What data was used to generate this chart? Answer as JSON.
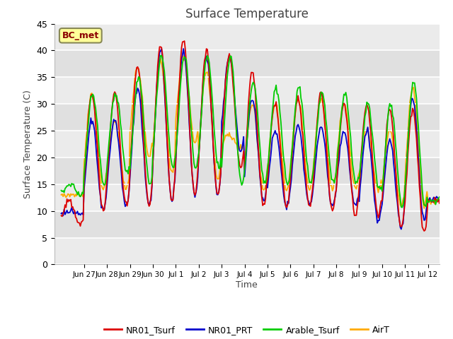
{
  "title": "Surface Temperature",
  "ylabel": "Surface Temperature (C)",
  "xlabel": "Time",
  "ylim": [
    0,
    45
  ],
  "annotation": "BC_met",
  "bg_color": "#e8e8e8",
  "fig_bg": "#ffffff",
  "series_colors": {
    "NR01_Tsurf": "#dd0000",
    "NR01_PRT": "#0000cc",
    "Arable_Tsurf": "#00cc00",
    "AirT": "#ffaa00"
  },
  "tick_labels": [
    "Jun 27",
    "Jun 28",
    "Jun 29",
    "Jun 30",
    "Jul 1",
    "Jul 2",
    "Jul 3",
    "Jul 4",
    "Jul 5",
    "Jul 6",
    "Jul 7",
    "Jul 8",
    "Jul 9",
    "Jul 10",
    "Jul 11",
    "Jul 12"
  ],
  "yticks": [
    0,
    5,
    10,
    15,
    20,
    25,
    30,
    35,
    40,
    45
  ],
  "grid_color": "#ffffff",
  "alt_band_color": "#d8d8d8"
}
